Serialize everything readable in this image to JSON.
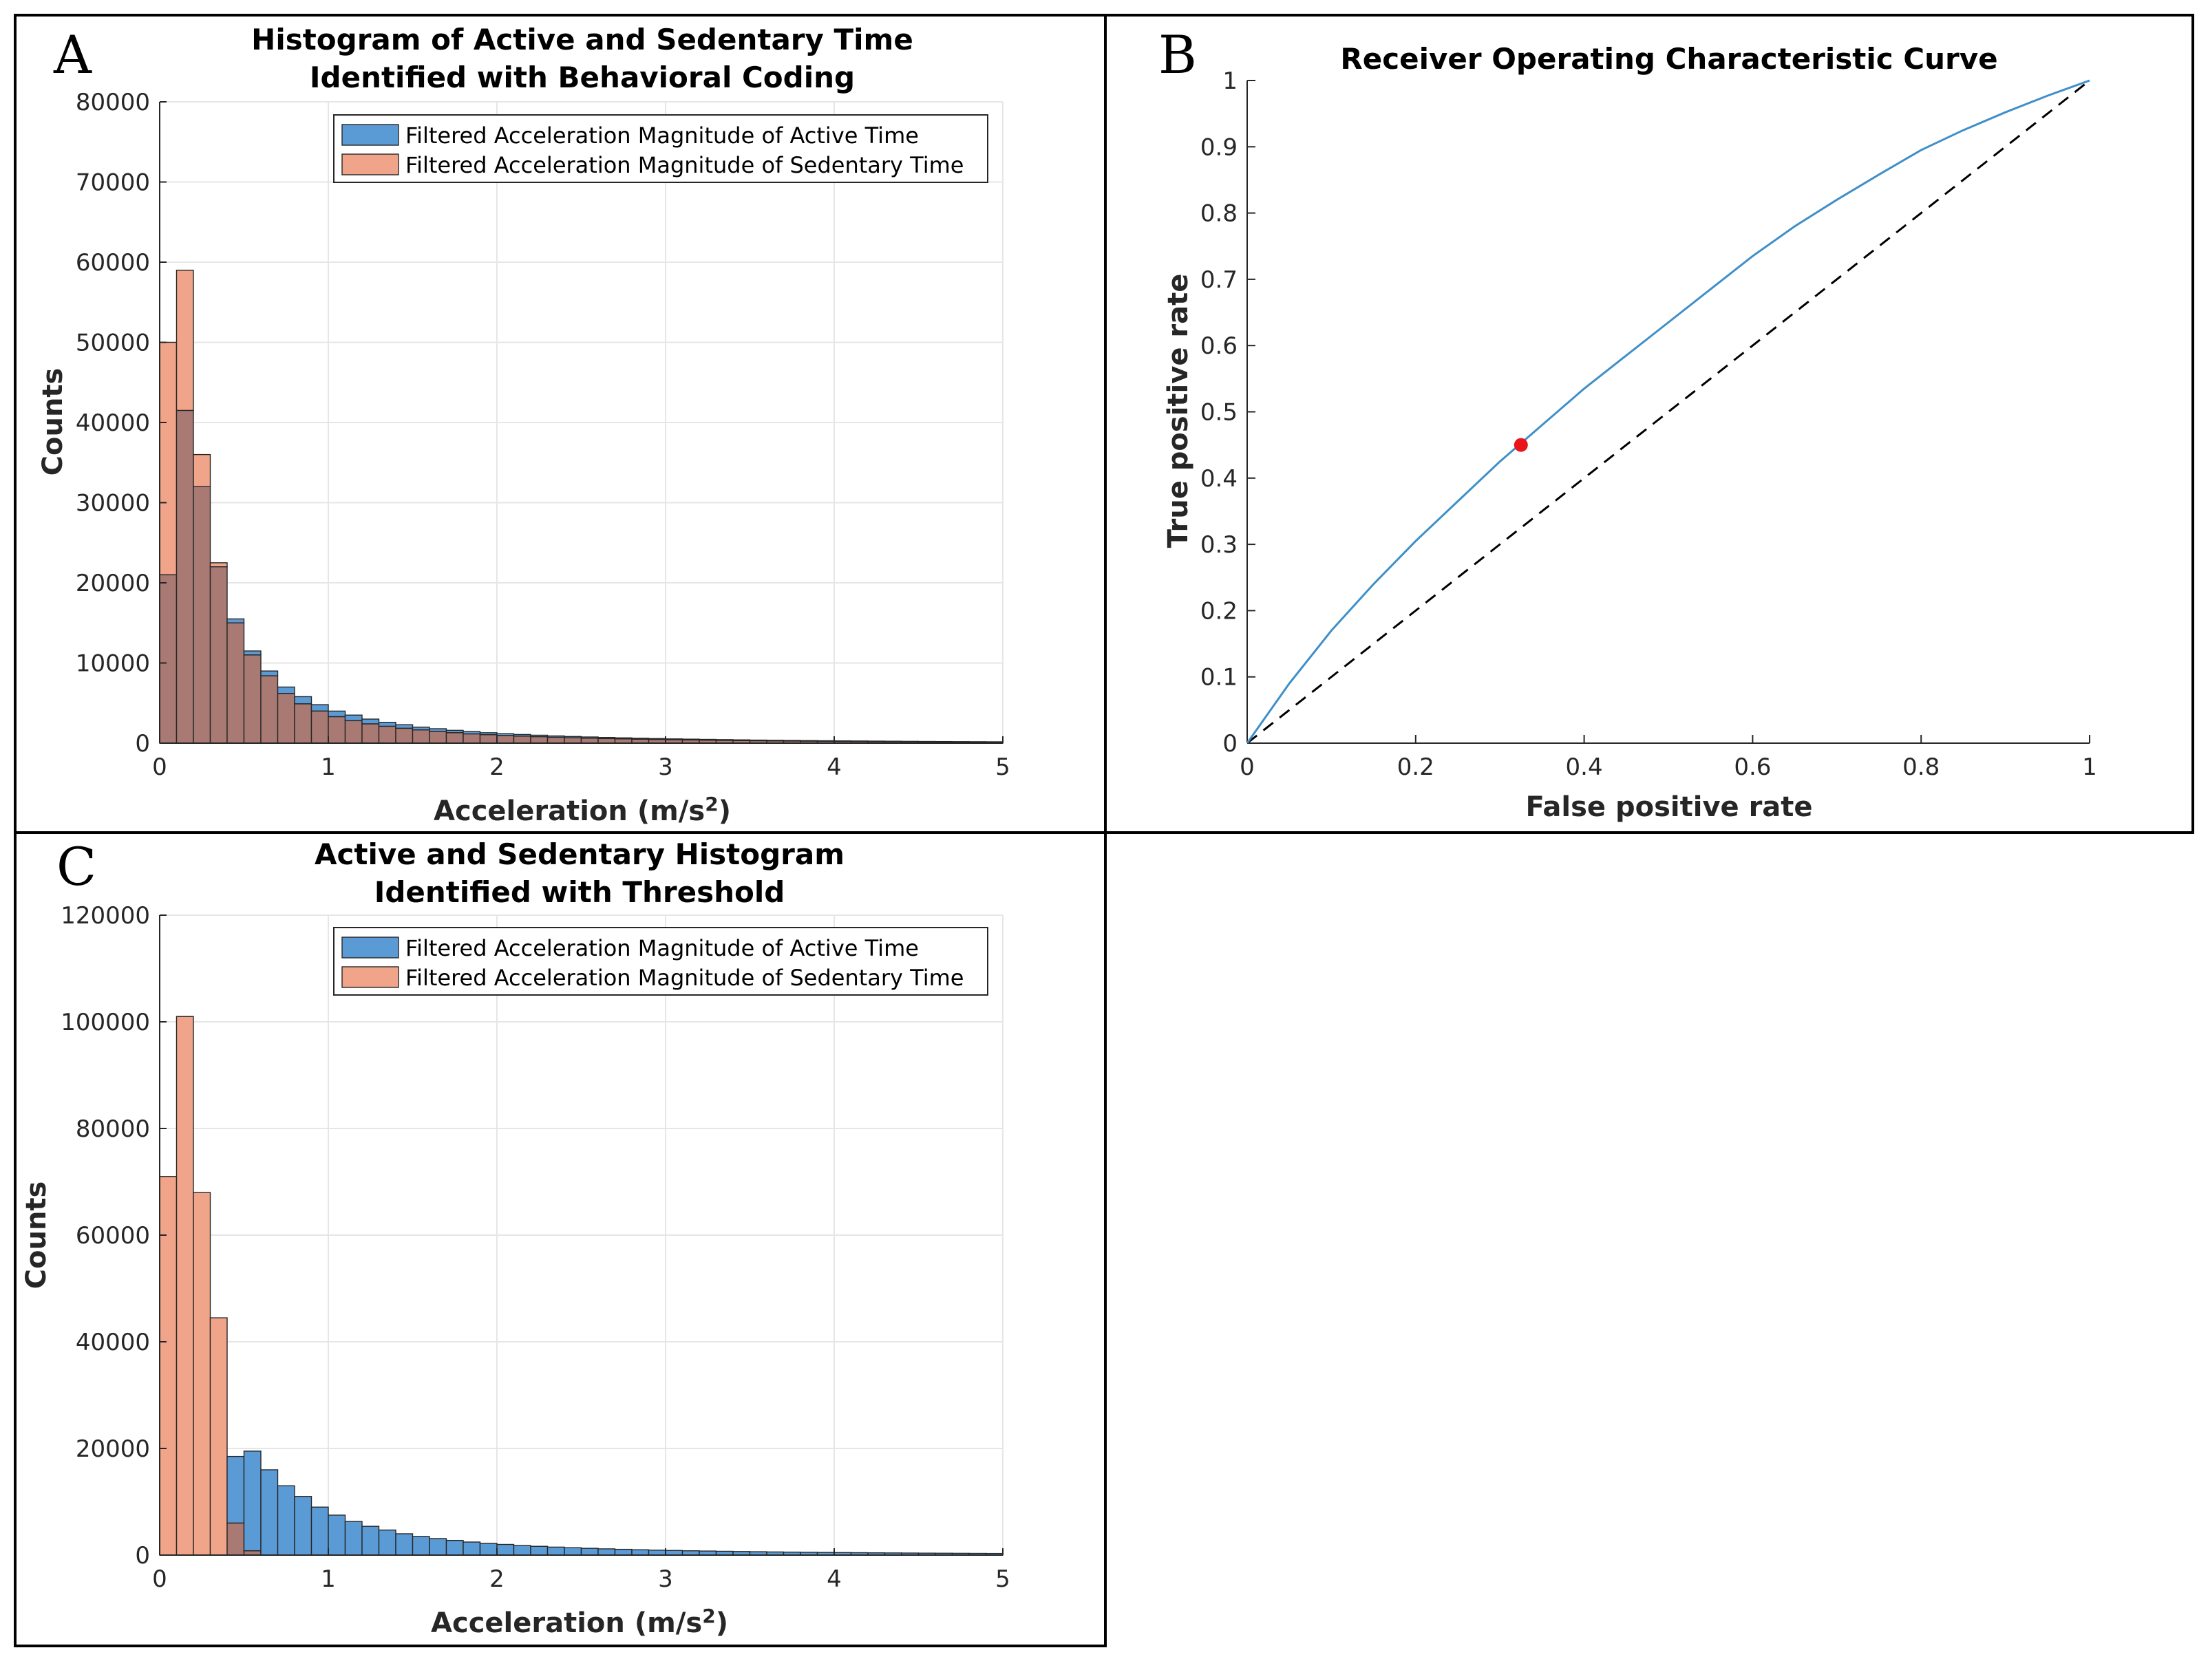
{
  "figure": {
    "colors": {
      "active": "#5b9bd5",
      "sedentary": "#f0a58a",
      "overlap": "#a87a73",
      "roc_curve": "#3f8fc9",
      "optimal_point": "#e8151b",
      "diagonal": "#000000"
    }
  },
  "chart_data": [
    {
      "panel": "A",
      "type": "bar",
      "title": "Histogram of Active and Sedentary Time",
      "title_line2": "Identified with Behavioral Coding",
      "xlabel": "Acceleration (m/s",
      "xlabel_sup": "2",
      "xlabel_end": ")",
      "ylabel": "Counts",
      "xlim": [
        0,
        5
      ],
      "ylim": [
        0,
        80000
      ],
      "xticks": [
        "0",
        "1",
        "2",
        "3",
        "4",
        "5"
      ],
      "yticks": [
        "0",
        "10000",
        "20000",
        "30000",
        "40000",
        "50000",
        "60000",
        "70000",
        "80000"
      ],
      "legend": [
        "Filtered Acceleration Magnitude of Active Time",
        "Filtered Acceleration Magnitude of Sedentary Time"
      ],
      "bin_width": 0.1,
      "series": [
        {
          "name": "Filtered Acceleration Magnitude of Active Time",
          "values": [
            21000,
            41500,
            32000,
            22000,
            15500,
            11500,
            9000,
            7000,
            5800,
            4800,
            4000,
            3500,
            3000,
            2600,
            2300,
            2000,
            1800,
            1600,
            1450,
            1300,
            1180,
            1080,
            990,
            900,
            830,
            770,
            710,
            660,
            610,
            570,
            530,
            500,
            470,
            440,
            410,
            380,
            360,
            340,
            320,
            300,
            285,
            270,
            255,
            240,
            225,
            210,
            200,
            190,
            180,
            170
          ]
        },
        {
          "name": "Filtered Acceleration Magnitude of Sedentary Time",
          "values": [
            50000,
            59000,
            36000,
            22500,
            15000,
            11000,
            8400,
            6200,
            4900,
            4000,
            3300,
            2800,
            2400,
            2100,
            1850,
            1650,
            1450,
            1300,
            1150,
            1050,
            950,
            870,
            800,
            730,
            670,
            620,
            570,
            530,
            490,
            455,
            425,
            395,
            370,
            345,
            320,
            300,
            280,
            262,
            245,
            230,
            215,
            200,
            188,
            176,
            165,
            155,
            145,
            136,
            128,
            120
          ]
        }
      ]
    },
    {
      "panel": "B",
      "type": "line",
      "title": "Receiver Operating Characteristic Curve",
      "xlabel": "False positive rate",
      "ylabel": "True positive rate",
      "xlim": [
        0,
        1
      ],
      "ylim": [
        0,
        1
      ],
      "xticks": [
        "0",
        "0.2",
        "0.4",
        "0.6",
        "0.8",
        "1"
      ],
      "yticks": [
        "0",
        "0.1",
        "0.2",
        "0.3",
        "0.4",
        "0.5",
        "0.6",
        "0.7",
        "0.8",
        "0.9",
        "1"
      ],
      "series": [
        {
          "name": "ROC curve",
          "x": [
            0,
            0.05,
            0.1,
            0.15,
            0.2,
            0.25,
            0.3,
            0.35,
            0.4,
            0.45,
            0.5,
            0.55,
            0.6,
            0.65,
            0.7,
            0.75,
            0.8,
            0.85,
            0.9,
            0.95,
            1.0
          ],
          "y": [
            0,
            0.09,
            0.17,
            0.24,
            0.305,
            0.365,
            0.425,
            0.48,
            0.535,
            0.585,
            0.635,
            0.685,
            0.735,
            0.78,
            0.82,
            0.858,
            0.895,
            0.925,
            0.952,
            0.977,
            1.0
          ]
        },
        {
          "name": "Chance diagonal",
          "x": [
            0,
            1
          ],
          "y": [
            0,
            1
          ]
        }
      ],
      "optimal_point": {
        "x": 0.325,
        "y": 0.45
      }
    },
    {
      "panel": "C",
      "type": "bar",
      "title": "Active and Sedentary Histogram",
      "title_line2": "Identified with Threshold",
      "xlabel": "Acceleration (m/s",
      "xlabel_sup": "2",
      "xlabel_end": ")",
      "ylabel": "Counts",
      "xlim": [
        0,
        5
      ],
      "ylim": [
        0,
        120000
      ],
      "xticks": [
        "0",
        "1",
        "2",
        "3",
        "4",
        "5"
      ],
      "yticks": [
        "0",
        "20000",
        "40000",
        "60000",
        "80000",
        "100000",
        "120000"
      ],
      "legend": [
        "Filtered Acceleration Magnitude of Active Time",
        "Filtered Acceleration Magnitude of Sedentary Time"
      ],
      "bin_width": 0.1,
      "series": [
        {
          "name": "Filtered Acceleration Magnitude of Active Time",
          "values": [
            0,
            0,
            0,
            0,
            18500,
            19500,
            16000,
            13000,
            11000,
            9000,
            7500,
            6300,
            5400,
            4700,
            4000,
            3500,
            3100,
            2750,
            2450,
            2200,
            2000,
            1800,
            1650,
            1500,
            1380,
            1270,
            1170,
            1080,
            1000,
            930,
            870,
            810,
            760,
            710,
            670,
            630,
            590,
            560,
            530,
            500,
            475,
            450,
            425,
            405,
            385,
            365,
            350,
            335,
            320,
            305
          ]
        },
        {
          "name": "Filtered Acceleration Magnitude of Sedentary Time",
          "values": [
            71000,
            101000,
            68000,
            44500,
            6000,
            800,
            0,
            0,
            0,
            0,
            0,
            0,
            0,
            0,
            0,
            0,
            0,
            0,
            0,
            0,
            0,
            0,
            0,
            0,
            0,
            0,
            0,
            0,
            0,
            0,
            0,
            0,
            0,
            0,
            0,
            0,
            0,
            0,
            0,
            0,
            0,
            0,
            0,
            0,
            0,
            0,
            0,
            0,
            0,
            0
          ]
        }
      ]
    }
  ],
  "panel_labels": {
    "a": "A",
    "b": "B",
    "c": "C"
  }
}
